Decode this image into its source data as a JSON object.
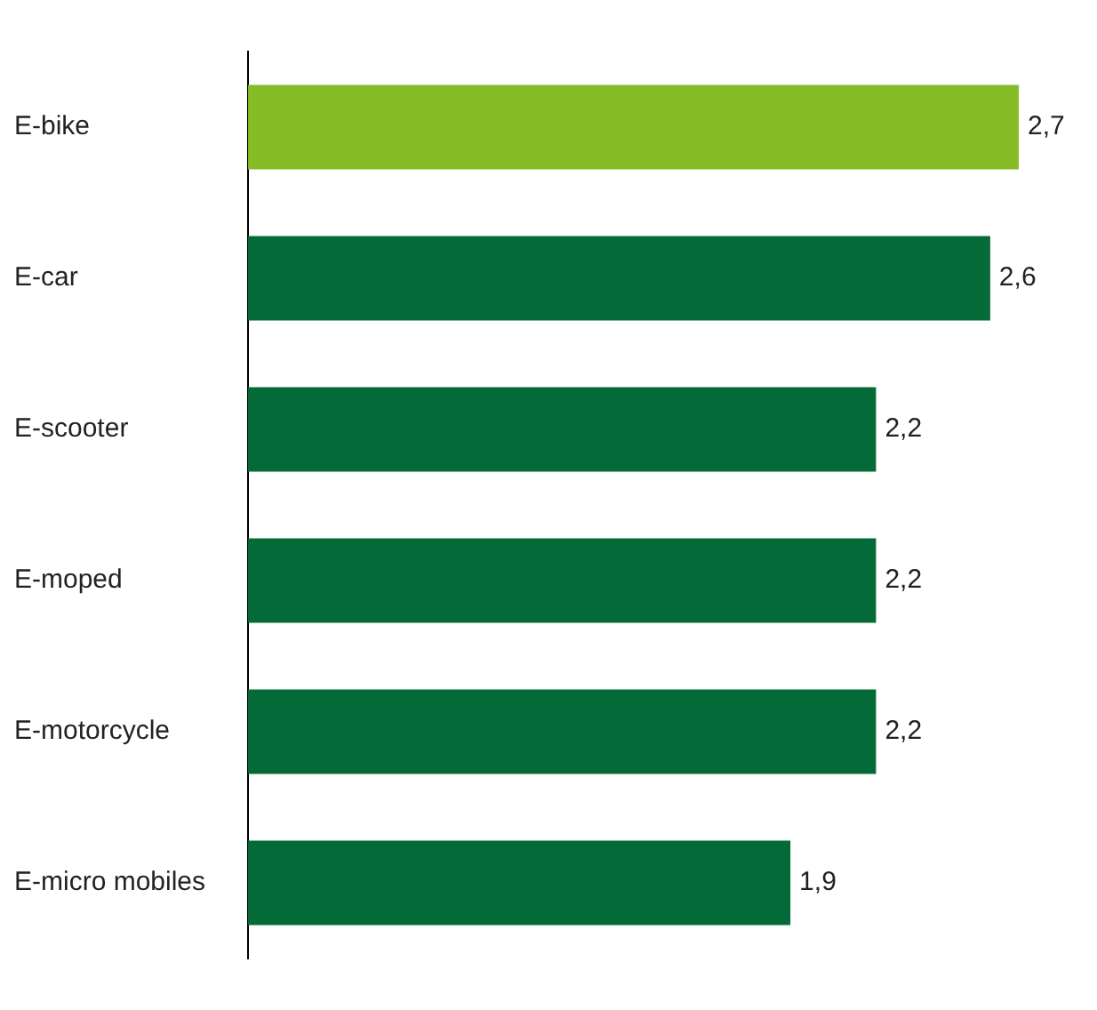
{
  "chart_data": {
    "type": "bar",
    "orientation": "horizontal",
    "categories": [
      "E-bike",
      "E-car",
      "E-scooter",
      "E-moped",
      "E-motorcycle",
      "E-micro mobiles"
    ],
    "values": [
      2.7,
      2.6,
      2.2,
      2.2,
      2.2,
      1.9
    ],
    "colors": [
      "#86bc25",
      "#046a38",
      "#046a38",
      "#046a38",
      "#046a38",
      "#046a38"
    ],
    "value_labels": [
      "2,7",
      "2,6",
      "2,2",
      "2,2",
      "2,2",
      "1,9"
    ],
    "legend": false
  }
}
